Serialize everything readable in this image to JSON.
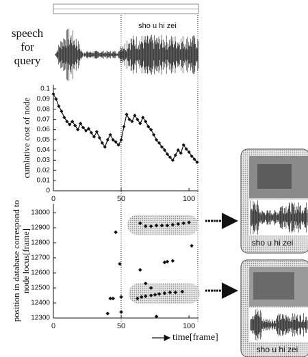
{
  "annotations": {
    "query_label": [
      "speech",
      "for",
      "query"
    ],
    "segment_label": "sho u hi zei",
    "result_captions": [
      "sho u hi zei",
      "sho u hi zei"
    ]
  },
  "chart_data": [
    {
      "type": "line",
      "y_label": [
        "cumlative cost of node"
      ],
      "color": "#111",
      "x": [
        0,
        2,
        4,
        6,
        8,
        10,
        12,
        14,
        16,
        18,
        20,
        22,
        24,
        26,
        28,
        30,
        32,
        34,
        36,
        38,
        40,
        42,
        44,
        46,
        48,
        50,
        52,
        54,
        56,
        58,
        60,
        62,
        64,
        66,
        68,
        70,
        72,
        74,
        76,
        78,
        80,
        82,
        84,
        86,
        88,
        90,
        92,
        94,
        96,
        98,
        100,
        102,
        104,
        106
      ],
      "values": [
        0.095,
        0.09,
        0.083,
        0.078,
        0.072,
        0.068,
        0.065,
        0.068,
        0.064,
        0.06,
        0.066,
        0.062,
        0.059,
        0.061,
        0.057,
        0.053,
        0.058,
        0.052,
        0.047,
        0.043,
        0.05,
        0.055,
        0.05,
        0.048,
        0.045,
        0.05,
        0.063,
        0.075,
        0.07,
        0.068,
        0.074,
        0.07,
        0.066,
        0.072,
        0.068,
        0.063,
        0.06,
        0.055,
        0.05,
        0.047,
        0.043,
        0.04,
        0.036,
        0.033,
        0.03,
        0.035,
        0.04,
        0.037,
        0.045,
        0.041,
        0.038,
        0.034,
        0.031,
        0.028
      ],
      "xlim": [
        0,
        107
      ],
      "xticks": [
        0,
        50,
        100
      ],
      "ylim": [
        0,
        0.1
      ],
      "yticks": [
        0,
        0.01,
        0.02,
        0.03,
        0.04,
        0.05,
        0.06,
        0.07,
        0.08,
        0.09,
        0.1
      ],
      "grid": false
    },
    {
      "type": "scatter",
      "y_label": [
        "position in database correspond to",
        "node locus[frame]"
      ],
      "x_label": "time[frame]",
      "color": "#111",
      "x": [
        40,
        42,
        44,
        46,
        49,
        50,
        50,
        64,
        68,
        72,
        82,
        84,
        88,
        102,
        76,
        62,
        65,
        68,
        72,
        75,
        78,
        82,
        86,
        90,
        95,
        64,
        68,
        72,
        76,
        80,
        84,
        88,
        92,
        96,
        100
      ],
      "values": [
        12330,
        12430,
        12430,
        12870,
        12660,
        12340,
        12440,
        12620,
        12530,
        12500,
        12670,
        12675,
        12680,
        12780,
        12310,
        12430,
        12440,
        12445,
        12450,
        12455,
        12460,
        12465,
        12470,
        12470,
        12475,
        12930,
        12910,
        12910,
        12915,
        12915,
        12915,
        12920,
        12925,
        12930,
        12935
      ],
      "xlim": [
        0,
        107
      ],
      "xticks": [
        0,
        50,
        100
      ],
      "ylim": [
        12300,
        13000
      ],
      "yticks": [
        12300,
        12400,
        12500,
        12600,
        12700,
        12800,
        12900,
        13000
      ],
      "grid": false
    }
  ]
}
